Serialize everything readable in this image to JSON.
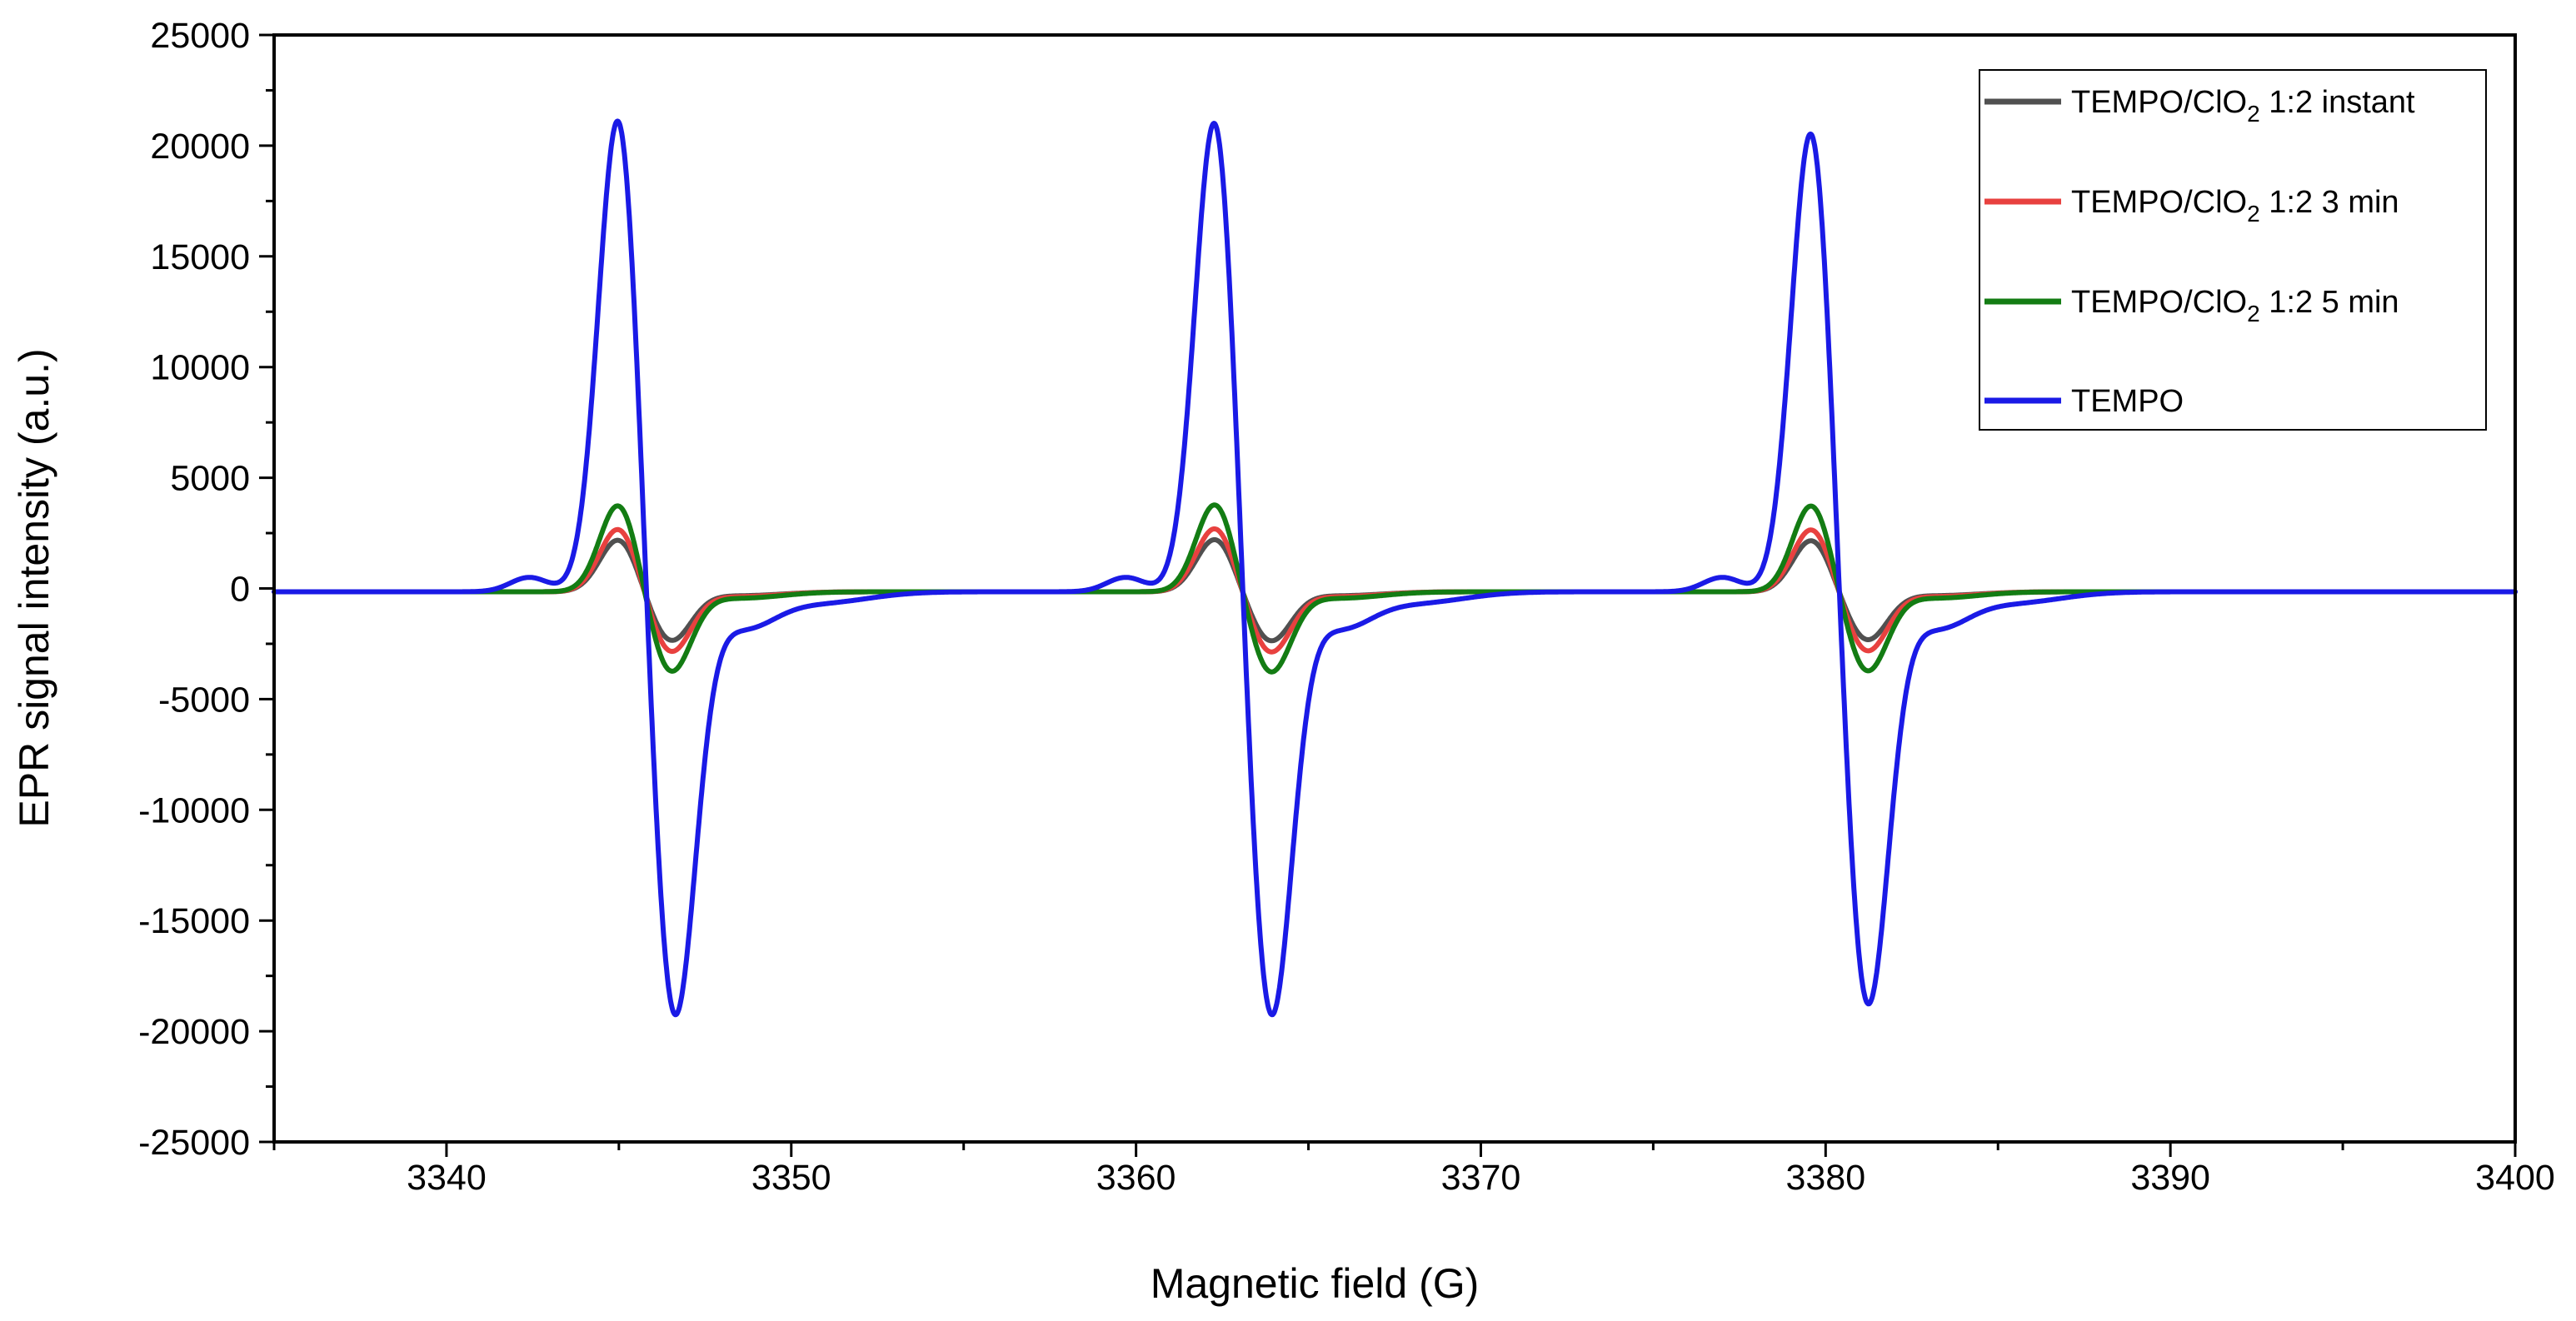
{
  "chart_data": {
    "type": "line",
    "title": "",
    "xlabel": "Magnetic field (G)",
    "ylabel": "EPR signal intensity (a.u.)",
    "xlim": [
      3335,
      3400
    ],
    "ylim": [
      -25000,
      25000
    ],
    "xticks": [
      3340,
      3350,
      3360,
      3370,
      3380,
      3390,
      3400
    ],
    "yticks": [
      25000,
      20000,
      15000,
      10000,
      5000,
      0,
      -5000,
      -10000,
      -15000,
      -20000,
      -25000
    ],
    "grid": false,
    "legend_position": "top-right",
    "series": [
      {
        "name": "TEMPO/ClO2 1:2 instant",
        "legend_main": "TEMPO/ClO",
        "legend_sub": "2",
        "legend_tail": " 1:2 instant",
        "color": "#505050",
        "peaks": [
          {
            "pos_x": 3345.0,
            "pos_y": 2400,
            "neg_x": 3346.5,
            "neg_y": -2200
          },
          {
            "pos_x": 3362.3,
            "pos_y": 2400,
            "neg_x": 3363.9,
            "neg_y": -2200
          },
          {
            "pos_x": 3379.6,
            "pos_y": 2350,
            "neg_x": 3381.2,
            "neg_y": -2150
          }
        ]
      },
      {
        "name": "TEMPO/ClO2 1:2 3 min",
        "legend_main": " TEMPO/ClO",
        "legend_sub": "2",
        "legend_tail": " 1:2 3 min",
        "color": "#e8413f",
        "peaks": [
          {
            "pos_x": 3345.0,
            "pos_y": 2900,
            "neg_x": 3346.5,
            "neg_y": -2700
          },
          {
            "pos_x": 3362.3,
            "pos_y": 2900,
            "neg_x": 3363.9,
            "neg_y": -2700
          },
          {
            "pos_x": 3379.6,
            "pos_y": 2850,
            "neg_x": 3381.2,
            "neg_y": -2650
          }
        ]
      },
      {
        "name": "TEMPO/ClO2 1:2 5 min",
        "legend_main": " TEMPO/ClO",
        "legend_sub": "2",
        "legend_tail": " 1:2 5 min",
        "color": "#137c13",
        "peaks": [
          {
            "pos_x": 3345.0,
            "pos_y": 4000,
            "neg_x": 3346.5,
            "neg_y": -3600
          },
          {
            "pos_x": 3362.3,
            "pos_y": 4000,
            "neg_x": 3363.9,
            "neg_y": -3600
          },
          {
            "pos_x": 3379.6,
            "pos_y": 3950,
            "neg_x": 3381.2,
            "neg_y": -3550
          }
        ]
      },
      {
        "name": "TEMPO",
        "legend_main": "TEMPO",
        "legend_sub": "",
        "legend_tail": "",
        "color": "#1a1ae6",
        "peaks": [
          {
            "pos_x": 3345.0,
            "pos_y": 21900,
            "neg_x": 3346.6,
            "neg_y": -19400
          },
          {
            "pos_x": 3362.3,
            "pos_y": 21800,
            "neg_x": 3363.9,
            "neg_y": -19400
          },
          {
            "pos_x": 3379.6,
            "pos_y": 21300,
            "neg_x": 3381.2,
            "neg_y": -18900
          }
        ]
      }
    ]
  }
}
